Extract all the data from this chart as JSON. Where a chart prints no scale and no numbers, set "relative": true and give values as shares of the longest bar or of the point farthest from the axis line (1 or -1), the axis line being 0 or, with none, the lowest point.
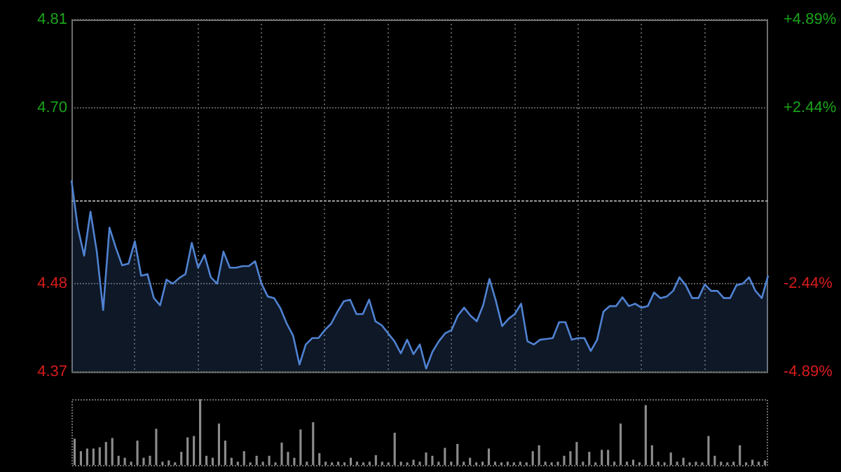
{
  "chart_data": [
    {
      "type": "area",
      "categories": [
        null,
        null,
        null,
        null,
        null,
        null,
        null,
        null,
        null,
        null,
        null,
        null,
        null,
        null,
        null,
        null,
        null,
        null,
        null,
        null,
        null,
        null,
        null,
        null,
        null,
        null,
        null,
        null,
        null,
        null,
        null,
        null,
        null,
        null,
        null,
        null,
        null,
        null,
        null,
        null,
        null,
        null,
        null,
        null,
        null,
        null,
        null,
        null,
        null,
        null,
        null,
        null,
        null,
        null,
        null,
        null,
        null,
        null,
        null,
        null,
        null,
        null,
        null,
        null,
        null,
        null,
        null,
        null,
        null,
        null,
        null,
        null,
        null,
        null,
        null,
        null,
        null,
        null,
        null,
        null,
        null,
        null,
        null,
        null,
        null,
        null,
        null,
        null,
        null,
        null,
        null,
        null,
        null,
        null,
        null,
        null,
        null,
        null,
        null,
        null,
        null,
        null,
        null,
        null,
        null,
        null,
        null,
        null,
        null,
        null,
        null
      ],
      "series": [
        {
          "color": "#4f82d1",
          "values": [
            4.609,
            4.55,
            4.515,
            4.57,
            4.52,
            4.447,
            4.55,
            4.525,
            4.503,
            4.505,
            4.533,
            4.49,
            4.492,
            4.462,
            4.453,
            4.485,
            4.48,
            4.487,
            4.492,
            4.531,
            4.5,
            4.516,
            4.488,
            4.48,
            4.52,
            4.5,
            4.5,
            4.502,
            4.502,
            4.508,
            4.48,
            4.464,
            4.462,
            4.449,
            4.43,
            4.415,
            4.379,
            4.404,
            4.412,
            4.412,
            4.422,
            4.43,
            4.445,
            4.458,
            4.46,
            4.442,
            4.442,
            4.46,
            4.433,
            4.428,
            4.418,
            4.408,
            4.393,
            4.41,
            4.392,
            4.404,
            4.374,
            4.395,
            4.408,
            4.418,
            4.422,
            4.44,
            4.45,
            4.44,
            4.433,
            4.453,
            4.486,
            4.459,
            4.427,
            4.436,
            4.442,
            4.455,
            4.408,
            4.404,
            4.41,
            4.411,
            4.412,
            4.432,
            4.432,
            4.41,
            4.412,
            4.412,
            4.396,
            4.41,
            4.445,
            4.452,
            4.452,
            4.463,
            4.452,
            4.455,
            4.45,
            4.452,
            4.469,
            4.462,
            4.464,
            4.471,
            4.488,
            4.478,
            4.462,
            4.462,
            4.479,
            4.471,
            4.471,
            4.462,
            4.462,
            4.478,
            4.48,
            4.488,
            4.471,
            4.462,
            4.49
          ]
        }
      ],
      "ylim": [
        4.37,
        4.81
      ],
      "yticks": [
        {
          "value": 4.37,
          "label": "4.37"
        },
        4.48,
        {
          "value": 4.7,
          "label": "4.70"
        },
        4.81
      ],
      "y2lim": [
        -4.89,
        4.89
      ],
      "y2ticks": [
        {
          "value": -4.89,
          "label": "-4.89%"
        },
        {
          "value": -2.44,
          "label": "-2.44%"
        },
        {
          "value": 2.44,
          "label": "+2.44%"
        },
        {
          "value": 4.89,
          "label": "+4.89%"
        }
      ],
      "ref_lines": [
        {
          "axis": "y",
          "value": 4.585
        }
      ],
      "grid": true,
      "marker": "none"
    },
    {
      "type": "bar",
      "relative": true,
      "categories": [
        null,
        null,
        null,
        null,
        null,
        null,
        null,
        null,
        null,
        null,
        null,
        null,
        null,
        null,
        null,
        null,
        null,
        null,
        null,
        null,
        null,
        null,
        null,
        null,
        null,
        null,
        null,
        null,
        null,
        null,
        null,
        null,
        null,
        null,
        null,
        null,
        null,
        null,
        null,
        null,
        null,
        null,
        null,
        null,
        null,
        null,
        null,
        null,
        null,
        null,
        null,
        null,
        null,
        null,
        null,
        null,
        null,
        null,
        null,
        null,
        null,
        null,
        null,
        null,
        null,
        null,
        null,
        null,
        null,
        null,
        null,
        null,
        null,
        null,
        null,
        null,
        null,
        null,
        null,
        null,
        null,
        null,
        null,
        null,
        null,
        null,
        null,
        null,
        null,
        null,
        null,
        null,
        null,
        null,
        null,
        null,
        null,
        null,
        null,
        null,
        null,
        null,
        null,
        null,
        null,
        null,
        null,
        null,
        null,
        null,
        null
      ],
      "color": "#8c8c8c",
      "values": [
        0.4,
        0.21,
        0.25,
        0.25,
        0.27,
        0.35,
        0.41,
        0.14,
        0.11,
        0.05,
        0.37,
        0.11,
        0.14,
        0.55,
        0.05,
        0.07,
        0.04,
        0.2,
        0.42,
        0.44,
        1.0,
        0.14,
        0.11,
        0.63,
        0.37,
        0.11,
        0.05,
        0.21,
        0.04,
        0.14,
        0.05,
        0.14,
        0.04,
        0.34,
        0.2,
        0.11,
        0.54,
        0.05,
        0.65,
        0.18,
        0.05,
        0.04,
        0.05,
        0.04,
        0.11,
        0.05,
        0.04,
        0.05,
        0.15,
        0.05,
        0.04,
        0.49,
        0.05,
        0.04,
        0.08,
        0.05,
        0.19,
        0.14,
        0.05,
        0.26,
        0.05,
        0.32,
        0.05,
        0.11,
        0.04,
        0.05,
        0.25,
        0.05,
        0.04,
        0.05,
        0.04,
        0.05,
        0.04,
        0.21,
        0.3,
        0.05,
        0.04,
        0.05,
        0.14,
        0.21,
        0.35,
        0.05,
        0.2,
        0.04,
        0.23,
        0.23,
        0.05,
        0.63,
        0.05,
        0.08,
        0.04,
        0.91,
        0.3,
        0.05,
        0.04,
        0.19,
        0.05,
        0.11,
        0.04,
        0.05,
        0.04,
        0.44,
        0.14,
        0.05,
        0.04,
        0.05,
        0.3,
        0.04,
        0.08,
        0.05,
        0.07
      ]
    }
  ]
}
